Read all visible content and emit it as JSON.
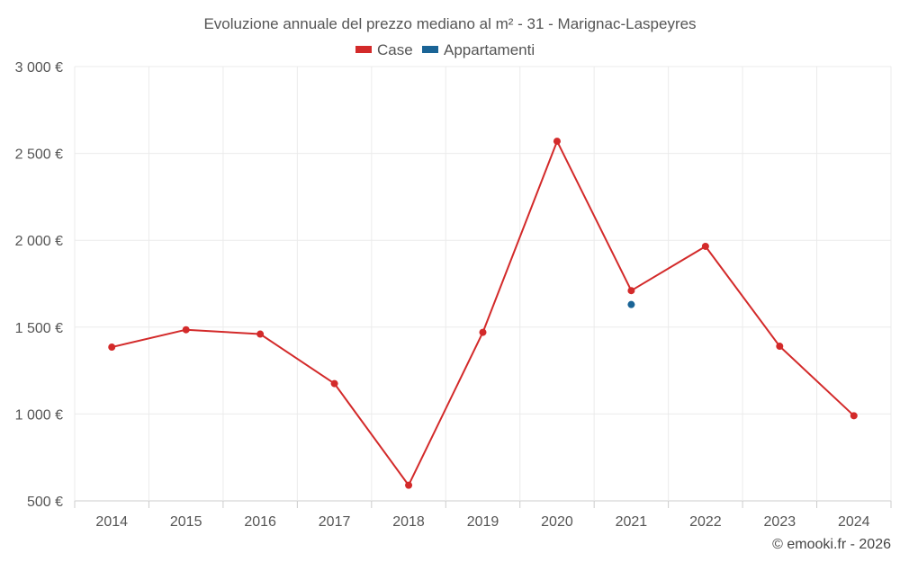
{
  "chart_data": {
    "type": "line",
    "title": "Evoluzione annuale del prezzo mediano al m² - 31 - Marignac-Laspeyres",
    "categories": [
      "2014",
      "2015",
      "2016",
      "2017",
      "2018",
      "2019",
      "2020",
      "2021",
      "2022",
      "2023",
      "2024"
    ],
    "y_ticks": [
      "500 €",
      "1 000 €",
      "1 500 €",
      "2 000 €",
      "2 500 €",
      "3 000 €"
    ],
    "y_tick_values": [
      500,
      1000,
      1500,
      2000,
      2500,
      3000
    ],
    "ylim": [
      500,
      3000
    ],
    "grid": true,
    "legend_position": "top-center",
    "series": [
      {
        "name": "Case",
        "color": "#d32a2a",
        "values": [
          1385,
          1485,
          1460,
          1175,
          590,
          1470,
          2570,
          1710,
          1965,
          1390,
          990
        ]
      },
      {
        "name": "Appartamenti",
        "color": "#1a6496",
        "values": [
          null,
          null,
          null,
          null,
          null,
          null,
          null,
          1630,
          null,
          null,
          null
        ]
      }
    ],
    "credit": "© emooki.fr - 2026"
  }
}
